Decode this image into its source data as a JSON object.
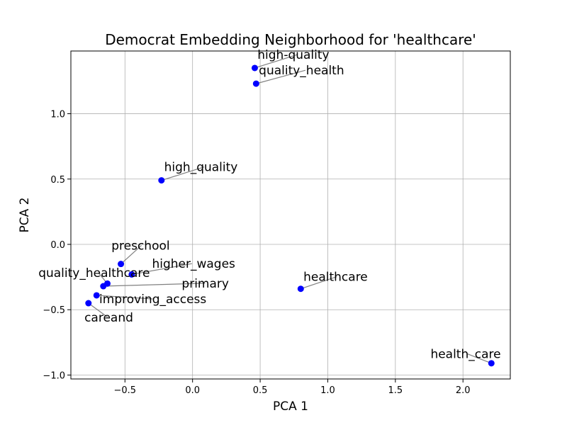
{
  "chart_data": {
    "type": "scatter",
    "title": "Democrat Embedding Neighborhood for 'healthcare'",
    "xlabel": "PCA 1",
    "ylabel": "PCA 2",
    "xlim": [
      -0.9,
      2.35
    ],
    "ylim": [
      -1.03,
      1.48
    ],
    "xticks": [
      -0.5,
      0.0,
      0.5,
      1.0,
      1.5,
      2.0
    ],
    "xtick_labels": [
      "−0.5",
      "0.0",
      "0.5",
      "1.0",
      "1.5",
      "2.0"
    ],
    "yticks": [
      -1.0,
      -0.5,
      0.0,
      0.5,
      1.0
    ],
    "ytick_labels": [
      "−1.0",
      "−0.5",
      "0.0",
      "0.5",
      "1.0"
    ],
    "grid": true,
    "marker_color": "#0000ff",
    "leader_color": "#808080",
    "points": [
      {
        "label": "high-quality",
        "x": 0.46,
        "y": 1.35,
        "lx": 0.48,
        "ly": 1.42
      },
      {
        "label": "quality_health",
        "x": 0.47,
        "y": 1.23,
        "lx": 0.49,
        "ly": 1.3
      },
      {
        "label": "high_quality",
        "x": -0.23,
        "y": 0.49,
        "lx": -0.21,
        "ly": 0.56
      },
      {
        "label": "preschool",
        "x": -0.53,
        "y": -0.15,
        "lx": -0.6,
        "ly": -0.04
      },
      {
        "label": "higher_wages",
        "x": -0.45,
        "y": -0.23,
        "lx": -0.3,
        "ly": -0.18
      },
      {
        "label": "quality_healthcare",
        "x": -0.63,
        "y": -0.3,
        "lx": -1.14,
        "ly": -0.25
      },
      {
        "label": "primary",
        "x": -0.66,
        "y": -0.32,
        "lx": -0.08,
        "ly": -0.33
      },
      {
        "label": "healthcare",
        "x": 0.8,
        "y": -0.34,
        "lx": 0.82,
        "ly": -0.28
      },
      {
        "label": "improving_access",
        "x": -0.71,
        "y": -0.39,
        "lx": -0.69,
        "ly": -0.45
      },
      {
        "label": "careand",
        "x": -0.77,
        "y": -0.45,
        "lx": -0.8,
        "ly": -0.59
      },
      {
        "label": "health_care",
        "x": 2.21,
        "y": -0.91,
        "lx": 1.76,
        "ly": -0.87
      }
    ]
  }
}
